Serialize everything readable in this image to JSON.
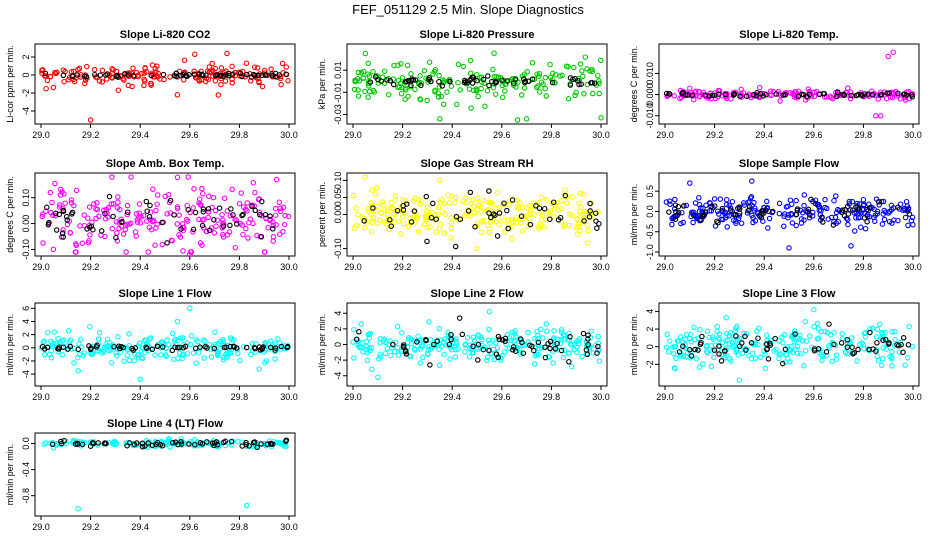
{
  "figure": {
    "title": "FEF_051129  2.5 Min. Slope Diagnostics"
  },
  "chart_data": [
    {
      "type": "scatter",
      "title": "Slope Li-820 CO2",
      "ylabel": "Li-cor ppm per min.",
      "xlim": [
        29.0,
        30.0
      ],
      "ylim": [
        -5,
        3
      ],
      "x_ticks": [
        "29.0",
        "29.2",
        "29.4",
        "29.6",
        "29.8",
        "30.0"
      ],
      "y_ticks": [
        "-4",
        "-2",
        "0",
        "2"
      ],
      "series": [
        {
          "color": "#ff0000",
          "center": 0.0,
          "spread": 0.55,
          "count": 170,
          "outliers": [
            [
              29.2,
              -5.0
            ],
            [
              29.55,
              -2.2
            ],
            [
              29.75,
              2.4
            ],
            [
              29.62,
              2.3
            ],
            [
              29.05,
              -1.4
            ]
          ]
        },
        {
          "color": "#000000",
          "center": 0.0,
          "spread": 0.12,
          "count": 60,
          "outliers": []
        }
      ]
    },
    {
      "type": "scatter",
      "title": "Slope Li-820 Pressure",
      "ylabel": "kPa per min.",
      "xlim": [
        29.0,
        30.0
      ],
      "ylim": [
        -0.035,
        0.03
      ],
      "x_ticks": [
        "29.0",
        "29.2",
        "29.4",
        "29.6",
        "29.8",
        "30.0"
      ],
      "y_ticks": [
        "-0.03",
        "-0.01",
        "0.01"
      ],
      "series": [
        {
          "color": "#00c800",
          "center": 0.0,
          "spread": 0.009,
          "count": 190,
          "outliers": [
            [
              29.35,
              -0.034
            ],
            [
              29.7,
              -0.034
            ],
            [
              30.0,
              -0.033
            ],
            [
              29.05,
              0.025
            ]
          ]
        },
        {
          "color": "#000000",
          "center": 0.0,
          "spread": 0.002,
          "count": 60,
          "outliers": []
        }
      ]
    },
    {
      "type": "scatter",
      "title": "Slope Li-820 Temp.",
      "ylabel": "degrees C per min.",
      "xlim": [
        29.0,
        30.0
      ],
      "ylim": [
        -0.012,
        0.022
      ],
      "x_ticks": [
        "29.0",
        "29.2",
        "29.4",
        "29.6",
        "29.8",
        "30.0"
      ],
      "y_ticks": [
        "-0.010",
        "0.000",
        "0.010"
      ],
      "series": [
        {
          "color": "#ff00ff",
          "center": 0.0,
          "spread": 0.0012,
          "count": 170,
          "outliers": [
            [
              29.85,
              -0.01
            ],
            [
              29.87,
              -0.01
            ],
            [
              29.92,
              0.02
            ],
            [
              29.9,
              0.018
            ],
            [
              29.1,
              0.003
            ]
          ]
        },
        {
          "color": "#000000",
          "center": 0.0,
          "spread": 0.0005,
          "count": 60,
          "outliers": []
        }
      ]
    },
    {
      "type": "scatter",
      "title": "Slope Amb. Box Temp.",
      "ylabel": "degrees C per min.",
      "xlim": [
        29.0,
        30.0
      ],
      "ylim": [
        -0.11,
        0.18
      ],
      "x_ticks": [
        "29.0",
        "29.2",
        "29.4",
        "29.6",
        "29.8",
        "30.0"
      ],
      "y_ticks": [
        "-0.10",
        "0.00",
        "0.10"
      ],
      "series": [
        {
          "color": "#ff00ff",
          "center": 0.02,
          "spread": 0.055,
          "count": 230,
          "outliers": [
            [
              29.6,
              -0.12
            ],
            [
              29.05,
              -0.1
            ],
            [
              29.95,
              0.17
            ]
          ]
        },
        {
          "color": "#000000",
          "center": 0.02,
          "spread": 0.045,
          "count": 60,
          "outliers": []
        }
      ]
    },
    {
      "type": "scatter",
      "title": "Slope Gas Stream RH",
      "ylabel": "percent per min.",
      "xlim": [
        29.0,
        30.0
      ],
      "ylim": [
        -0.11,
        0.11
      ],
      "x_ticks": [
        "29.0",
        "29.2",
        "29.4",
        "29.6",
        "29.8",
        "30.0"
      ],
      "y_ticks": [
        "-0.10",
        "0.00",
        "0.05",
        "0.10"
      ],
      "series": [
        {
          "color": "#ffff00",
          "center": 0.0,
          "spread": 0.032,
          "count": 260,
          "outliers": [
            [
              29.35,
              0.1
            ],
            [
              29.5,
              -0.1
            ]
          ]
        },
        {
          "color": "#000000",
          "center": 0.0,
          "spread": 0.03,
          "count": 50,
          "outliers": []
        }
      ]
    },
    {
      "type": "scatter",
      "title": "Slope Sample Flow",
      "ylabel": "ml/min per min.",
      "xlim": [
        29.0,
        30.0
      ],
      "ylim": [
        -1.0,
        0.85
      ],
      "x_ticks": [
        "29.0",
        "29.2",
        "29.4",
        "29.6",
        "29.8",
        "30.0"
      ],
      "y_ticks": [
        "-1.0",
        "-0.5",
        "0.0",
        "0.5"
      ],
      "series": [
        {
          "color": "#0000ff",
          "center": 0.0,
          "spread": 0.18,
          "count": 240,
          "outliers": [
            [
              29.35,
              0.75
            ],
            [
              29.1,
              0.7
            ],
            [
              29.75,
              -0.85
            ],
            [
              29.5,
              -0.9
            ]
          ]
        },
        {
          "color": "#000000",
          "center": 0.0,
          "spread": 0.12,
          "count": 60,
          "outliers": []
        }
      ]
    },
    {
      "type": "scatter",
      "title": "Slope Line 1 Flow",
      "ylabel": "ml/min per min.",
      "xlim": [
        29.0,
        30.0
      ],
      "ylim": [
        -5.2,
        6.2
      ],
      "x_ticks": [
        "29.0",
        "29.2",
        "29.4",
        "29.6",
        "29.8",
        "30.0"
      ],
      "y_ticks": [
        "-4",
        "-2",
        "0",
        "2",
        "4",
        "6"
      ],
      "series": [
        {
          "color": "#00ffff",
          "center": 0.0,
          "spread": 1.0,
          "count": 220,
          "outliers": [
            [
              29.6,
              6.0
            ],
            [
              29.4,
              -4.8
            ],
            [
              29.15,
              -3.5
            ],
            [
              29.55,
              4.0
            ]
          ]
        },
        {
          "color": "#000000",
          "center": 0.0,
          "spread": 0.15,
          "count": 60,
          "outliers": []
        }
      ]
    },
    {
      "type": "scatter",
      "title": "Slope Line 2 Flow",
      "ylabel": "ml/min per min.",
      "xlim": [
        29.0,
        30.0
      ],
      "ylim": [
        -4.8,
        4.8
      ],
      "x_ticks": [
        "29.0",
        "29.2",
        "29.4",
        "29.6",
        "29.8",
        "30.0"
      ],
      "y_ticks": [
        "-4",
        "-2",
        "0",
        "2",
        "4"
      ],
      "series": [
        {
          "color": "#00ffff",
          "center": 0.0,
          "spread": 1.1,
          "count": 240,
          "outliers": [
            [
              29.55,
              4.2
            ],
            [
              29.1,
              -4.2
            ]
          ]
        },
        {
          "color": "#000000",
          "center": 0.0,
          "spread": 0.9,
          "count": 60,
          "outliers": []
        }
      ]
    },
    {
      "type": "scatter",
      "title": "Slope Line 3 Flow",
      "ylabel": "ml/min per min.",
      "xlim": [
        29.0,
        30.0
      ],
      "ylim": [
        -4.0,
        4.5
      ],
      "x_ticks": [
        "29.0",
        "29.2",
        "29.4",
        "29.6",
        "29.8",
        "30.0"
      ],
      "y_ticks": [
        "-2",
        "0",
        "2",
        "4"
      ],
      "series": [
        {
          "color": "#00ffff",
          "center": 0.0,
          "spread": 1.2,
          "count": 240,
          "outliers": [
            [
              29.6,
              4.2
            ],
            [
              29.3,
              -3.8
            ]
          ]
        },
        {
          "color": "#000000",
          "center": 0.0,
          "spread": 0.9,
          "count": 60,
          "outliers": []
        }
      ]
    },
    {
      "type": "scatter",
      "title": "Slope Line 4 (LT) Flow",
      "ylabel": "ml/min per min.",
      "xlim": [
        29.0,
        30.0
      ],
      "ylim": [
        -1.05,
        0.1
      ],
      "x_ticks": [
        "29.0",
        "29.2",
        "29.4",
        "29.6",
        "29.8",
        "30.0"
      ],
      "y_ticks": [
        "-0.8",
        "-0.4",
        "0.0"
      ],
      "series": [
        {
          "color": "#00ffff",
          "center": 0.0,
          "spread": 0.025,
          "count": 150,
          "outliers": [
            [
              29.15,
              -1.0
            ],
            [
              29.83,
              -0.95
            ]
          ]
        },
        {
          "color": "#000000",
          "center": 0.0,
          "spread": 0.02,
          "count": 60,
          "outliers": []
        }
      ]
    }
  ]
}
